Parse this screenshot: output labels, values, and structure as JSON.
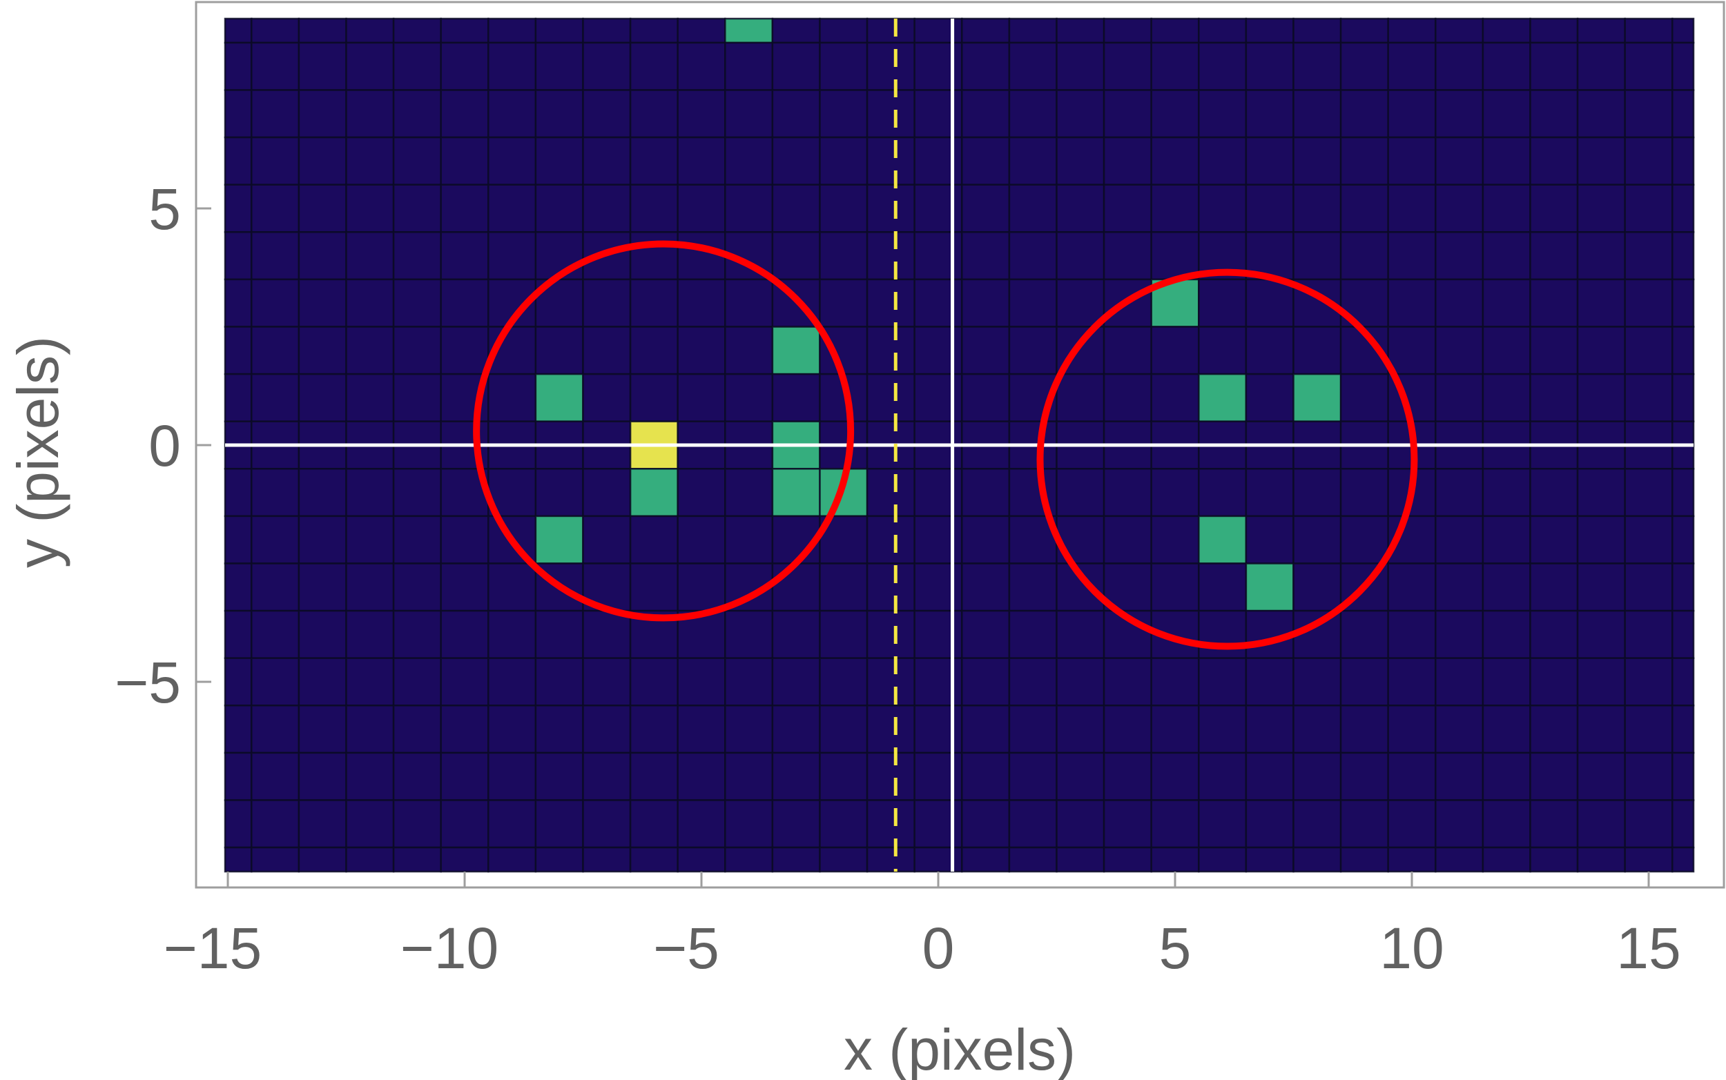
{
  "chart_data": {
    "type": "heatmap",
    "title": "",
    "xlabel": "x (pixels)",
    "ylabel": "y (pixels)",
    "xlim": [
      -15,
      16
    ],
    "ylim": [
      -9,
      9
    ],
    "xticks": [
      -15,
      -10,
      -5,
      0,
      5,
      10,
      15
    ],
    "yticks": [
      -5,
      0,
      5
    ],
    "xtick_labels": [
      "−15",
      "−10",
      "−5",
      "0",
      "5",
      "10",
      "15"
    ],
    "ytick_labels": [
      "−5",
      "0",
      "5"
    ],
    "grid": true,
    "background_value": 0,
    "colormap": {
      "0": "#1b0a5e",
      "1": "#35ae7e",
      "2": "#e6e34e"
    },
    "pixels": [
      {
        "x": -4,
        "y": 9,
        "value": 1
      },
      {
        "x": -3,
        "y": 2,
        "value": 1
      },
      {
        "x": -8,
        "y": 1,
        "value": 1
      },
      {
        "x": -6,
        "y": 0,
        "value": 2
      },
      {
        "x": -3,
        "y": 0,
        "value": 1
      },
      {
        "x": -6,
        "y": -1,
        "value": 1
      },
      {
        "x": -3,
        "y": -1,
        "value": 1
      },
      {
        "x": -2,
        "y": -1,
        "value": 1
      },
      {
        "x": -8,
        "y": -2,
        "value": 1
      },
      {
        "x": 5,
        "y": 3,
        "value": 1
      },
      {
        "x": 6,
        "y": 1,
        "value": 1
      },
      {
        "x": 8,
        "y": 1,
        "value": 1
      },
      {
        "x": 6,
        "y": -2,
        "value": 1
      },
      {
        "x": 7,
        "y": -3,
        "value": 1
      }
    ],
    "circles": [
      {
        "cx": -5.8,
        "cy": 0.3,
        "r": 3.95,
        "color": "#ff0000"
      },
      {
        "cx": 6.1,
        "cy": -0.3,
        "r": 3.95,
        "color": "#ff0000"
      }
    ],
    "white_lines": {
      "x": 0.3,
      "y": 0,
      "color": "#ffffff"
    },
    "dashed_line": {
      "x": -0.9,
      "color": "#f5e642"
    }
  }
}
